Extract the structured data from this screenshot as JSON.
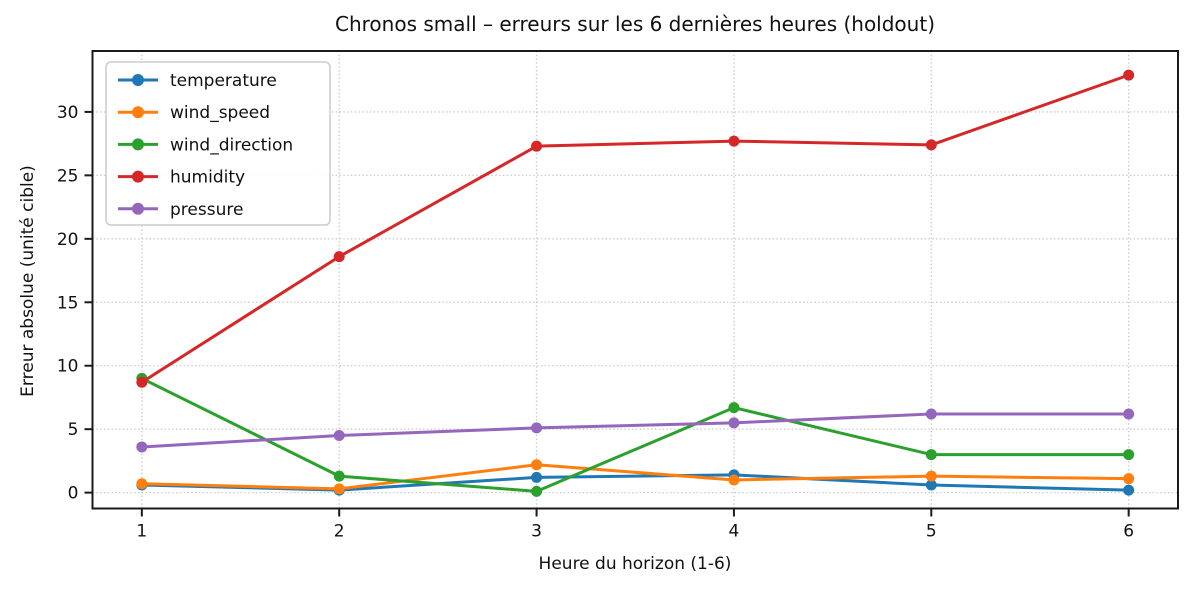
{
  "figure": {
    "background": "#ffffff",
    "spine_color": "#1a1a1a",
    "grid_color": "#c9c9c9",
    "text_color": "#111111",
    "legend_border_color": "#cccccc"
  },
  "chart_data": {
    "type": "line",
    "title": "Chronos small – erreurs sur les 6 dernières heures (holdout)",
    "xlabel": "Heure du horizon (1-6)",
    "ylabel": "Erreur absolue (unité cible)",
    "x": [
      1,
      2,
      3,
      4,
      5,
      6
    ],
    "xticks": [
      1,
      2,
      3,
      4,
      5,
      6
    ],
    "yticks": [
      0,
      5,
      10,
      15,
      20,
      25,
      30
    ],
    "xlim": [
      0.75,
      6.25
    ],
    "ylim": [
      -1.25,
      34.8
    ],
    "grid": true,
    "grid_style": "dotted",
    "legend_position": "upper left",
    "marker": "circle",
    "series": [
      {
        "name": "temperature",
        "color": "#1f77b4",
        "values": [
          0.6,
          0.2,
          1.2,
          1.4,
          0.6,
          0.2
        ]
      },
      {
        "name": "wind_speed",
        "color": "#ff7f0e",
        "values": [
          0.7,
          0.3,
          2.2,
          1.0,
          1.3,
          1.1
        ]
      },
      {
        "name": "wind_direction",
        "color": "#2ca02c",
        "values": [
          9.0,
          1.3,
          0.1,
          6.7,
          3.0,
          3.0
        ]
      },
      {
        "name": "humidity",
        "color": "#d62728",
        "values": [
          8.7,
          18.6,
          27.3,
          27.7,
          27.4,
          32.9
        ]
      },
      {
        "name": "pressure",
        "color": "#9467bd",
        "values": [
          3.6,
          4.5,
          5.1,
          5.5,
          6.2,
          6.2
        ]
      }
    ]
  }
}
